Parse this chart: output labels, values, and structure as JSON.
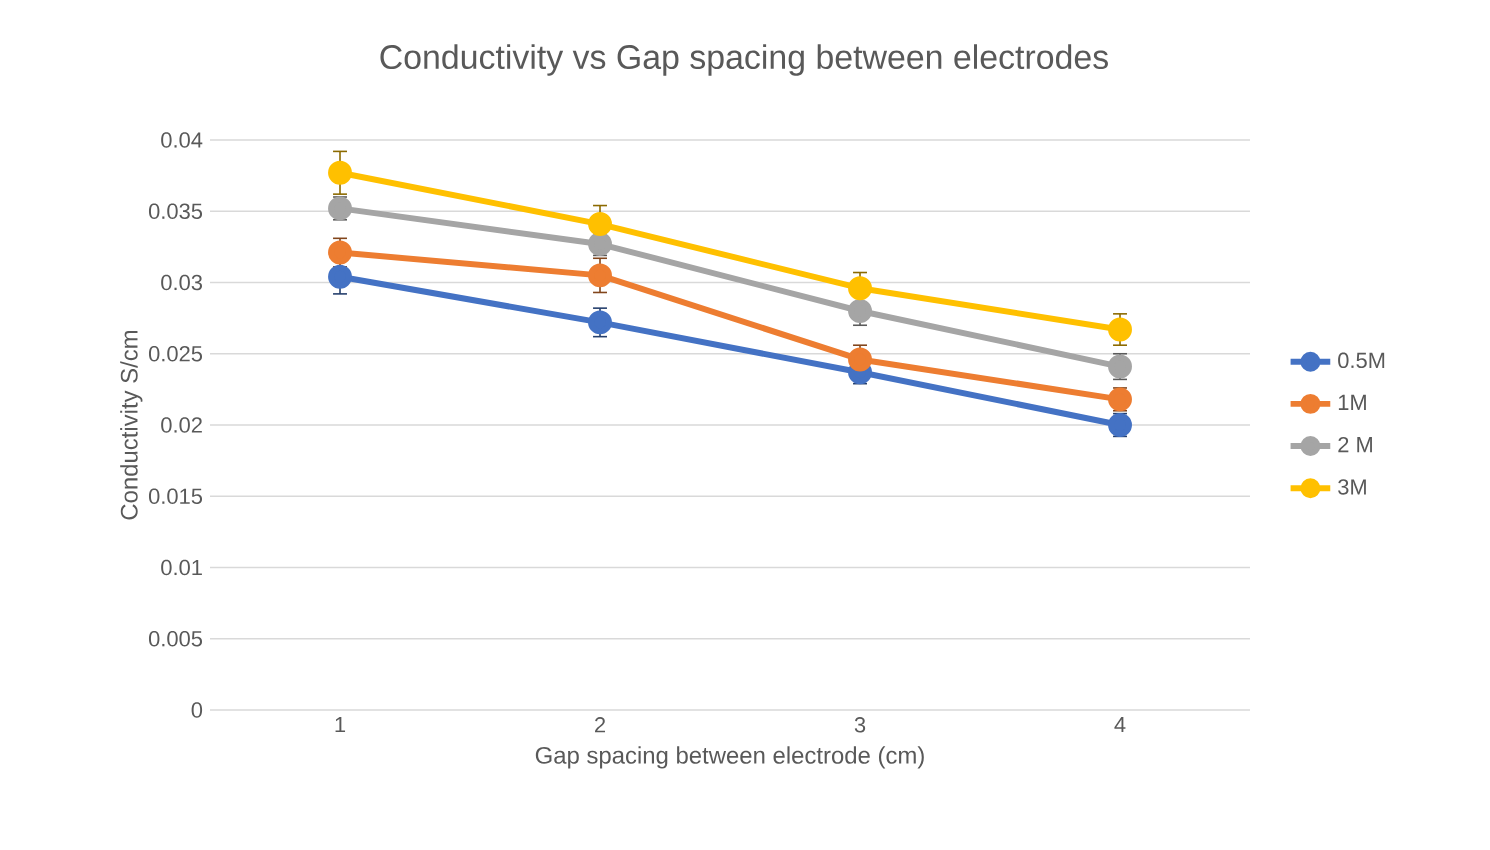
{
  "chart_data": {
    "type": "line",
    "title": "Conductivity vs Gap spacing between electrodes",
    "xlabel": "Gap spacing between electrode (cm)",
    "ylabel": "Conductivity S/cm",
    "categories": [
      "1",
      "2",
      "3",
      "4"
    ],
    "series": [
      {
        "name": "0.5M",
        "color": "#4472c4",
        "values": [
          0.0304,
          0.0272,
          0.0237,
          0.02
        ],
        "errors": [
          0.0012,
          0.001,
          0.0008,
          0.0008
        ]
      },
      {
        "name": "1M",
        "color": "#ed7d31",
        "values": [
          0.0321,
          0.0305,
          0.0246,
          0.0218
        ],
        "errors": [
          0.001,
          0.0012,
          0.001,
          0.0008
        ]
      },
      {
        "name": "2 M",
        "color": "#a5a5a5",
        "values": [
          0.0352,
          0.0327,
          0.028,
          0.0241
        ],
        "errors": [
          0.0008,
          0.0008,
          0.001,
          0.0009
        ]
      },
      {
        "name": "3M",
        "color": "#ffc000",
        "values": [
          0.0377,
          0.0341,
          0.0296,
          0.0267
        ],
        "errors": [
          0.0015,
          0.0013,
          0.0011,
          0.0011
        ]
      }
    ],
    "ylim": [
      0,
      0.04
    ],
    "yticks": [
      0,
      0.005,
      0.01,
      0.015,
      0.02,
      0.025,
      0.03,
      0.035,
      0.04
    ],
    "grid": "y",
    "legend": "right",
    "marker": "circle",
    "line_style": "solid"
  }
}
